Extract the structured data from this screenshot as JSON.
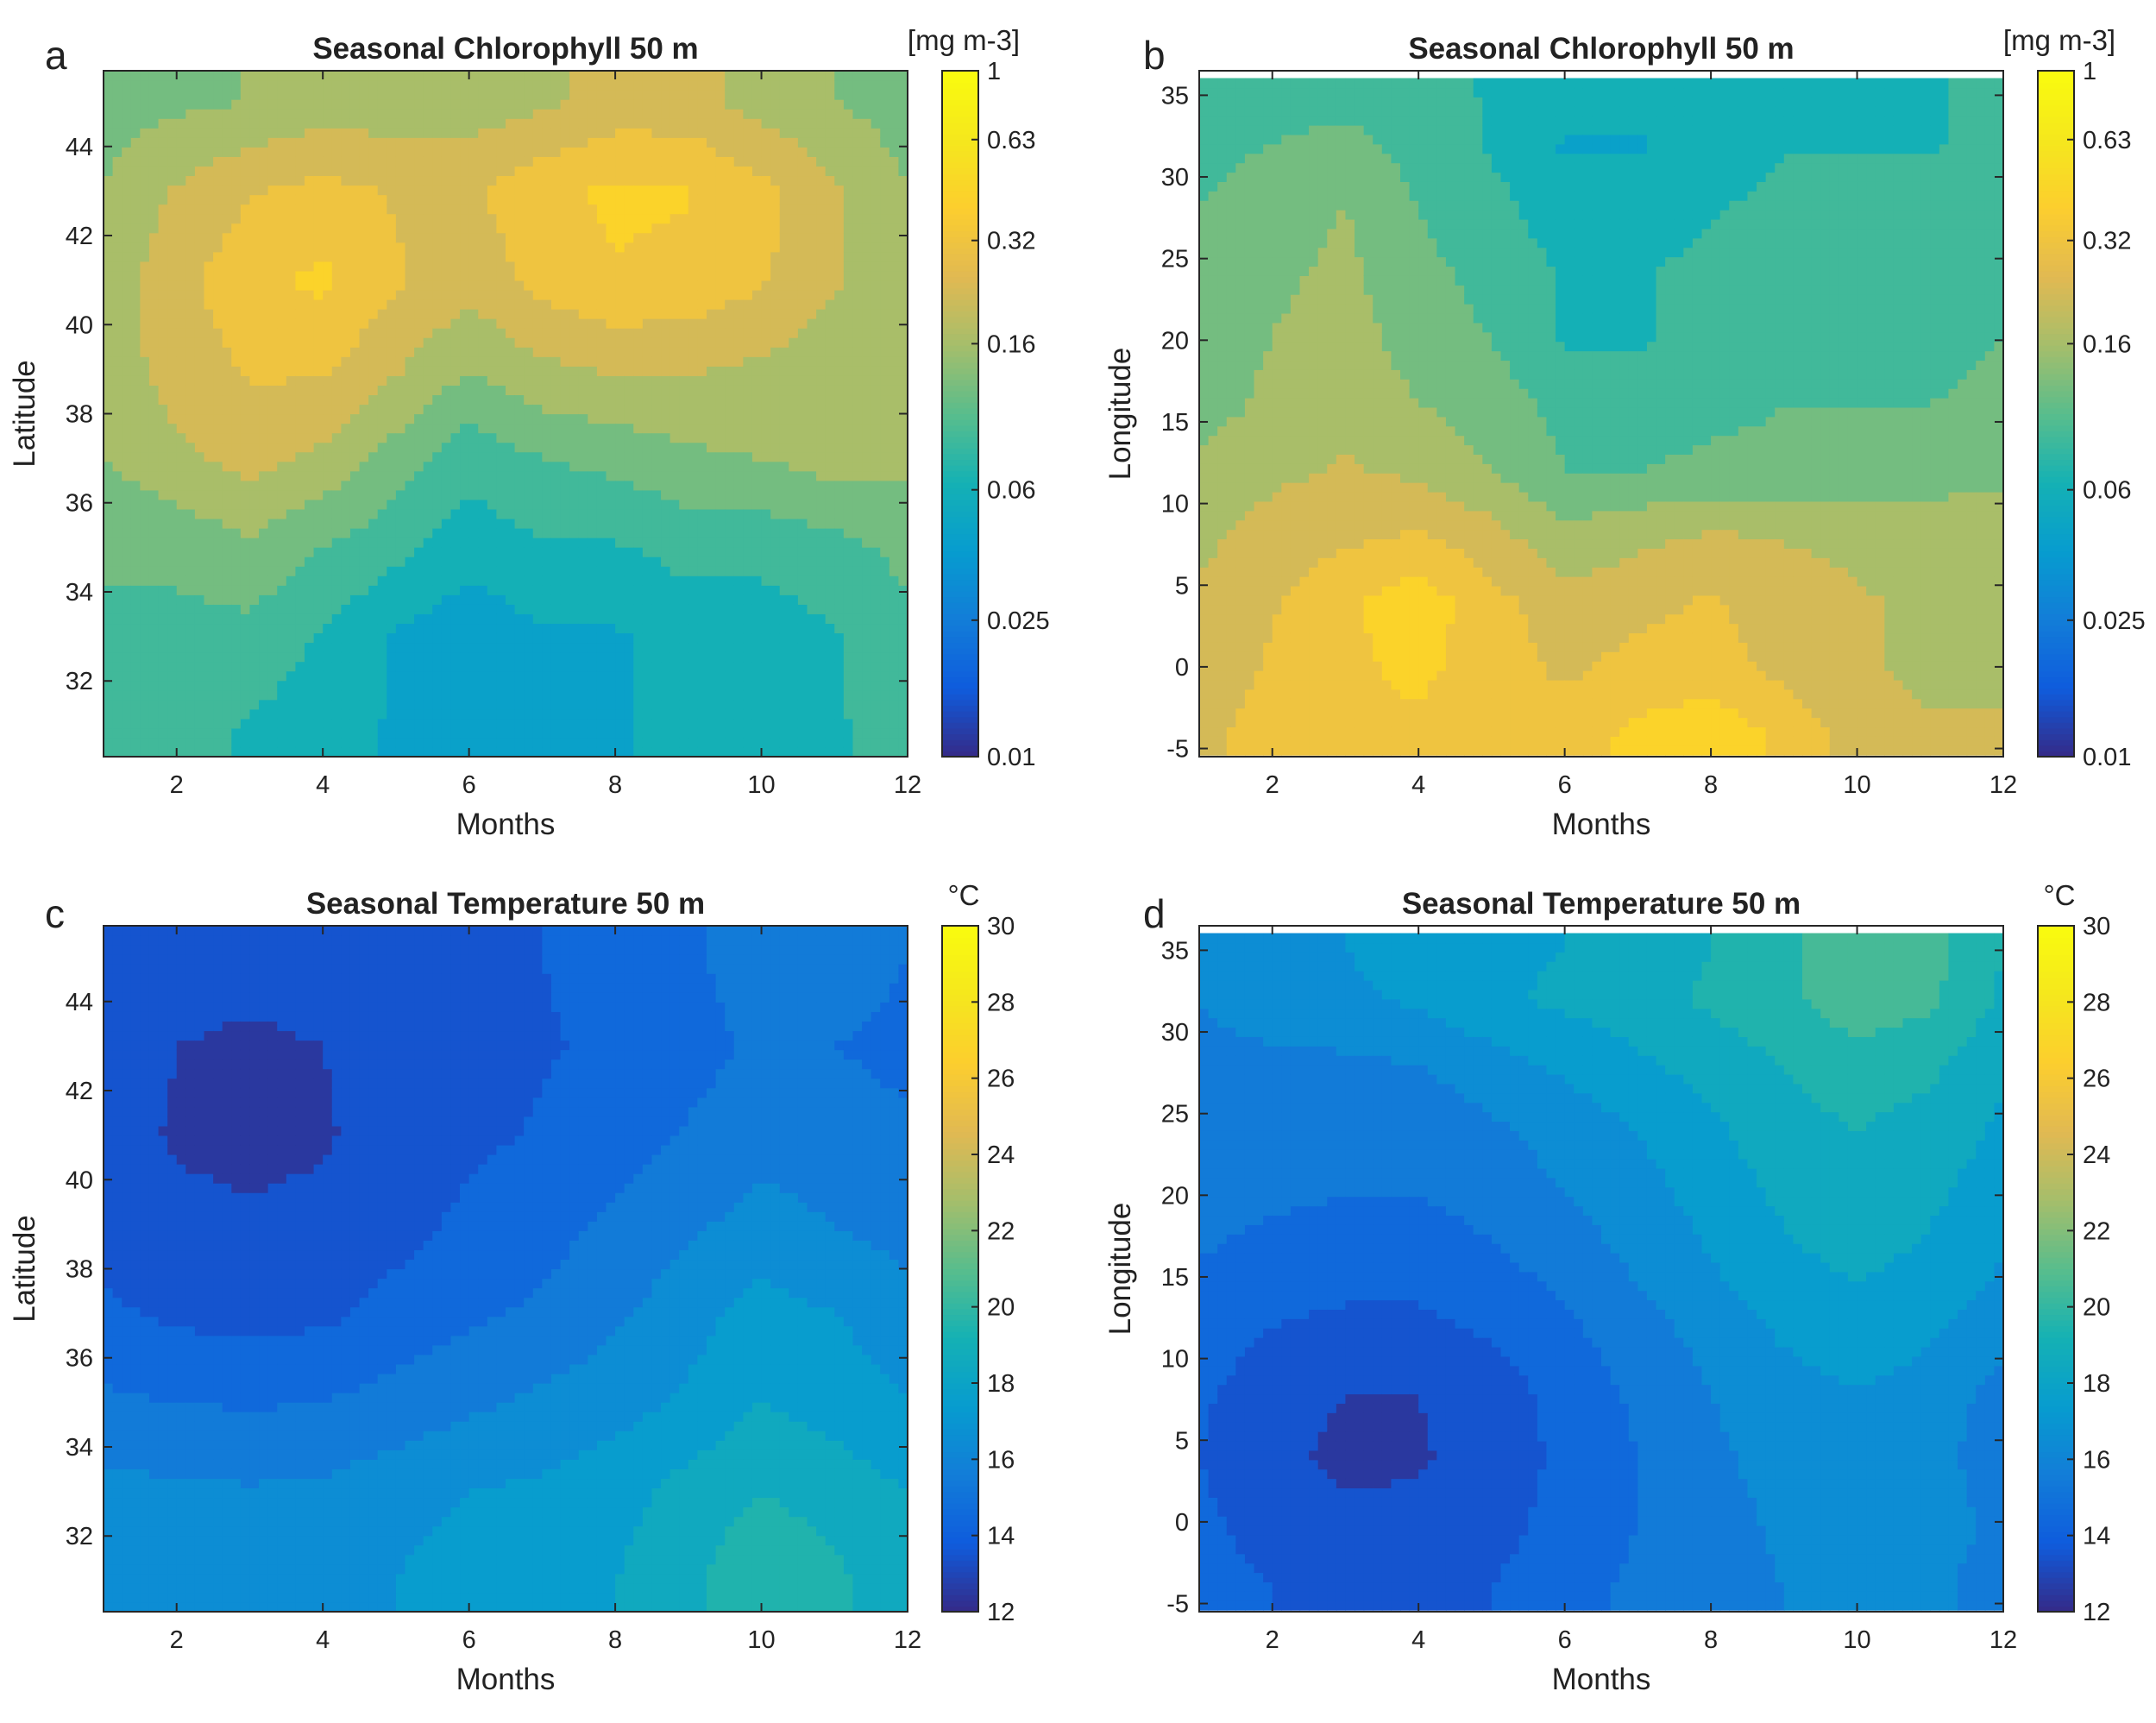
{
  "chart_data": [
    {
      "type": "heatmap",
      "panel": "a",
      "title": "Seasonal Chlorophyll 50 m",
      "xlabel": "Months",
      "ylabel": "Latitude",
      "xlim": [
        1,
        12
      ],
      "ylim": [
        30.3,
        45.7
      ],
      "xticks": [
        2,
        4,
        6,
        8,
        10,
        12
      ],
      "yticks": [
        32,
        34,
        36,
        38,
        40,
        42,
        44
      ],
      "colorbar": {
        "unit": "[mg m-3]",
        "scale": "log",
        "range": [
          0.01,
          1
        ],
        "ticks": [
          0.01,
          0.025,
          0.06,
          0.16,
          0.32,
          0.63,
          1
        ],
        "tick_labels": [
          "0.01",
          "0.025",
          "0.06",
          "0.16",
          "0.32",
          "0.63",
          "1"
        ]
      },
      "x": [
        1,
        2,
        3,
        4,
        5,
        6,
        7,
        8,
        9,
        10,
        11,
        12
      ],
      "y": [
        31,
        33,
        35,
        37,
        39,
        41,
        43,
        45
      ],
      "z": [
        [
          0.1,
          0.08,
          0.07,
          0.06,
          0.05,
          0.04,
          0.05,
          0.05,
          0.06,
          0.06,
          0.07,
          0.08
        ],
        [
          0.1,
          0.09,
          0.09,
          0.07,
          0.05,
          0.04,
          0.05,
          0.05,
          0.06,
          0.06,
          0.07,
          0.09
        ],
        [
          0.1,
          0.11,
          0.13,
          0.1,
          0.08,
          0.06,
          0.07,
          0.07,
          0.08,
          0.08,
          0.09,
          0.11
        ],
        [
          0.14,
          0.18,
          0.22,
          0.18,
          0.12,
          0.08,
          0.1,
          0.11,
          0.13,
          0.14,
          0.16,
          0.15
        ],
        [
          0.16,
          0.22,
          0.28,
          0.28,
          0.2,
          0.14,
          0.18,
          0.2,
          0.2,
          0.18,
          0.16,
          0.15
        ],
        [
          0.16,
          0.24,
          0.34,
          0.4,
          0.28,
          0.22,
          0.3,
          0.36,
          0.34,
          0.28,
          0.2,
          0.15
        ],
        [
          0.14,
          0.2,
          0.26,
          0.3,
          0.26,
          0.25,
          0.34,
          0.4,
          0.38,
          0.3,
          0.2,
          0.14
        ],
        [
          0.12,
          0.13,
          0.14,
          0.16,
          0.16,
          0.16,
          0.18,
          0.22,
          0.22,
          0.17,
          0.14,
          0.12
        ]
      ]
    },
    {
      "type": "heatmap",
      "panel": "b",
      "title": "Seasonal Chlorophyll 50 m",
      "xlabel": "Months",
      "ylabel": "Longitude",
      "xlim": [
        1,
        12
      ],
      "ylim": [
        -5.5,
        36.5
      ],
      "xticks": [
        2,
        4,
        6,
        8,
        10,
        12
      ],
      "yticks": [
        -5,
        0,
        5,
        10,
        15,
        20,
        25,
        30,
        35
      ],
      "colorbar": {
        "unit": "[mg m-3]",
        "scale": "log",
        "range": [
          0.01,
          1
        ],
        "ticks": [
          0.01,
          0.025,
          0.06,
          0.16,
          0.32,
          0.63,
          1
        ],
        "tick_labels": [
          "0.01",
          "0.025",
          "0.06",
          "0.16",
          "0.32",
          "0.63",
          "1"
        ]
      },
      "x": [
        1,
        2,
        3,
        4,
        5,
        6,
        7,
        8,
        9,
        10,
        11,
        12
      ],
      "y": [
        -4,
        0,
        4,
        8,
        12,
        16,
        20,
        24,
        28,
        32,
        35
      ],
      "z": [
        [
          0.25,
          0.3,
          0.35,
          0.35,
          0.3,
          0.32,
          0.4,
          0.45,
          0.35,
          0.22,
          0.2,
          0.2
        ],
        [
          0.22,
          0.28,
          0.35,
          0.4,
          0.32,
          0.25,
          0.3,
          0.32,
          0.24,
          0.2,
          0.18,
          0.18
        ],
        [
          0.2,
          0.26,
          0.35,
          0.45,
          0.3,
          0.22,
          0.24,
          0.28,
          0.22,
          0.2,
          0.18,
          0.18
        ],
        [
          0.18,
          0.22,
          0.25,
          0.28,
          0.22,
          0.15,
          0.18,
          0.2,
          0.19,
          0.18,
          0.17,
          0.17
        ],
        [
          0.15,
          0.18,
          0.2,
          0.18,
          0.14,
          0.1,
          0.1,
          0.11,
          0.11,
          0.11,
          0.12,
          0.13
        ],
        [
          0.12,
          0.15,
          0.18,
          0.14,
          0.12,
          0.09,
          0.08,
          0.09,
          0.1,
          0.1,
          0.1,
          0.11
        ],
        [
          0.11,
          0.14,
          0.16,
          0.12,
          0.1,
          0.07,
          0.07,
          0.08,
          0.09,
          0.09,
          0.09,
          0.1
        ],
        [
          0.11,
          0.13,
          0.15,
          0.11,
          0.09,
          0.07,
          0.07,
          0.08,
          0.08,
          0.08,
          0.09,
          0.1
        ],
        [
          0.1,
          0.12,
          0.14,
          0.1,
          0.08,
          0.06,
          0.06,
          0.07,
          0.08,
          0.08,
          0.08,
          0.09
        ],
        [
          0.09,
          0.1,
          0.11,
          0.09,
          0.07,
          0.05,
          0.05,
          0.06,
          0.07,
          0.07,
          0.07,
          0.08
        ],
        [
          0.09,
          0.09,
          0.09,
          0.08,
          0.07,
          0.06,
          0.06,
          0.07,
          0.07,
          0.07,
          0.07,
          0.08
        ]
      ]
    },
    {
      "type": "heatmap",
      "panel": "c",
      "title": "Seasonal Temperature 50 m",
      "xlabel": "Months",
      "ylabel": "Latitude",
      "xlim": [
        1,
        12
      ],
      "ylim": [
        30.3,
        45.7
      ],
      "xticks": [
        2,
        4,
        6,
        8,
        10,
        12
      ],
      "yticks": [
        32,
        34,
        36,
        38,
        40,
        42,
        44
      ],
      "colorbar": {
        "unit": "°C",
        "scale": "linear",
        "range": [
          12,
          30
        ],
        "ticks": [
          12,
          14,
          16,
          18,
          20,
          22,
          24,
          26,
          28,
          30
        ],
        "tick_labels": [
          "12",
          "14",
          "16",
          "18",
          "20",
          "22",
          "24",
          "26",
          "28",
          "30"
        ]
      },
      "x": [
        1,
        2,
        3,
        4,
        5,
        6,
        7,
        8,
        9,
        10,
        11,
        12
      ],
      "y": [
        31,
        33,
        35,
        37,
        39,
        41,
        43,
        45
      ],
      "z": [
        [
          16.6,
          16.6,
          16.5,
          16.6,
          17.0,
          17.6,
          17.8,
          18.0,
          18.8,
          19.8,
          19.2,
          18.4
        ],
        [
          16.3,
          16.2,
          16.1,
          16.2,
          16.6,
          17.0,
          17.2,
          17.6,
          18.4,
          19.0,
          18.6,
          18.0
        ],
        [
          15.2,
          15.0,
          14.9,
          15.0,
          15.4,
          15.8,
          16.2,
          16.6,
          17.2,
          18.0,
          17.6,
          17.0
        ],
        [
          14.2,
          13.8,
          13.6,
          13.8,
          14.3,
          14.8,
          15.2,
          15.8,
          16.6,
          17.4,
          17.0,
          16.4
        ],
        [
          13.6,
          13.2,
          13.1,
          13.2,
          13.7,
          14.2,
          14.6,
          15.2,
          15.8,
          16.4,
          16.0,
          15.6
        ],
        [
          13.4,
          12.9,
          12.8,
          12.9,
          13.4,
          13.8,
          14.1,
          14.6,
          15.1,
          15.6,
          15.4,
          15.1
        ],
        [
          13.5,
          13.0,
          12.9,
          13.0,
          13.4,
          13.7,
          13.9,
          14.2,
          14.6,
          15.2,
          15.0,
          14.8
        ],
        [
          13.6,
          13.3,
          13.2,
          13.3,
          13.6,
          13.8,
          14.0,
          14.3,
          14.8,
          15.6,
          15.4,
          15.0
        ]
      ]
    },
    {
      "type": "heatmap",
      "panel": "d",
      "title": "Seasonal Temperature 50 m",
      "xlabel": "Months",
      "ylabel": "Longitude",
      "xlim": [
        1,
        12
      ],
      "ylim": [
        -5.5,
        36.5
      ],
      "xticks": [
        2,
        4,
        6,
        8,
        10,
        12
      ],
      "yticks": [
        -5,
        0,
        5,
        10,
        15,
        20,
        25,
        30,
        35
      ],
      "colorbar": {
        "unit": "°C",
        "scale": "linear",
        "range": [
          12,
          30
        ],
        "ticks": [
          12,
          14,
          16,
          18,
          20,
          22,
          24,
          26,
          28,
          30
        ],
        "tick_labels": [
          "12",
          "14",
          "16",
          "18",
          "20",
          "22",
          "24",
          "26",
          "28",
          "30"
        ]
      },
      "x": [
        1,
        2,
        3,
        4,
        5,
        6,
        7,
        8,
        9,
        10,
        11,
        12
      ],
      "y": [
        -4,
        0,
        4,
        8,
        12,
        16,
        20,
        24,
        28,
        32,
        35
      ],
      "z": [
        [
          14.4,
          14.0,
          13.8,
          13.8,
          14.0,
          14.6,
          15.2,
          15.6,
          16.0,
          16.4,
          16.2,
          15.6
        ],
        [
          14.2,
          13.6,
          13.2,
          13.2,
          13.6,
          14.4,
          15.0,
          15.6,
          16.2,
          16.6,
          16.4,
          15.8
        ],
        [
          14.0,
          13.2,
          12.8,
          12.9,
          13.4,
          14.2,
          15.0,
          15.8,
          16.4,
          16.8,
          16.4,
          15.4
        ],
        [
          14.2,
          13.4,
          13.0,
          13.0,
          13.5,
          14.4,
          15.2,
          16.0,
          16.6,
          17.0,
          16.6,
          15.6
        ],
        [
          14.6,
          14.0,
          13.8,
          13.8,
          14.2,
          14.8,
          15.6,
          16.4,
          17.2,
          17.6,
          17.2,
          16.4
        ],
        [
          15.0,
          14.6,
          14.4,
          14.4,
          14.8,
          15.4,
          16.2,
          17.0,
          17.8,
          18.2,
          17.8,
          17.0
        ],
        [
          15.4,
          15.2,
          15.0,
          15.0,
          15.4,
          16.0,
          16.6,
          17.4,
          18.2,
          18.6,
          18.2,
          17.4
        ],
        [
          15.6,
          15.4,
          15.2,
          15.3,
          15.8,
          16.4,
          17.0,
          17.8,
          18.6,
          19.0,
          18.6,
          17.8
        ],
        [
          15.8,
          15.8,
          15.8,
          16.0,
          16.6,
          17.2,
          17.8,
          18.4,
          19.0,
          19.6,
          19.2,
          18.2
        ],
        [
          16.0,
          16.4,
          16.8,
          17.2,
          17.8,
          18.2,
          18.6,
          19.2,
          19.8,
          20.6,
          20.2,
          18.8
        ],
        [
          16.2,
          16.6,
          17.0,
          17.4,
          17.8,
          18.0,
          18.4,
          19.0,
          19.8,
          20.8,
          20.4,
          19.0
        ]
      ]
    }
  ]
}
